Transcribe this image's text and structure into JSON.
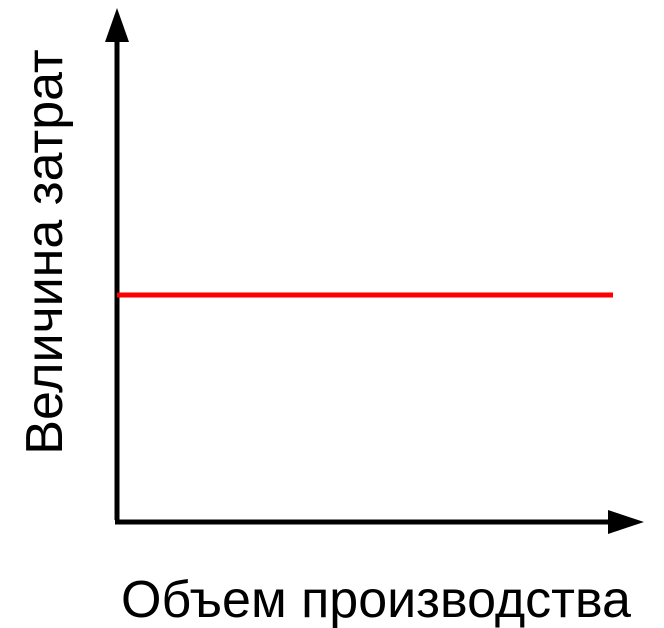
{
  "chart_data": {
    "type": "line",
    "title": "",
    "xlabel": "Объем производства",
    "ylabel": "Величина затрат",
    "xlim": [
      0,
      1
    ],
    "ylim": [
      0,
      1
    ],
    "grid": false,
    "legend": "none",
    "series": [
      {
        "color": "#ff0000",
        "x": [
          0,
          1
        ],
        "y": [
          0.5,
          0.5
        ]
      }
    ]
  }
}
